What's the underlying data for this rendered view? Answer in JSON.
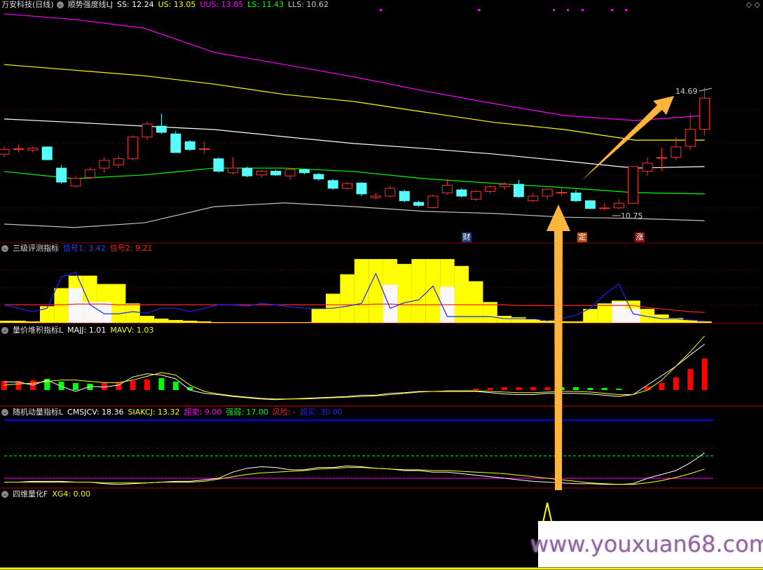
{
  "main_header": {
    "title": "万安科技(日线)",
    "indicator": "顺势强度线LJ",
    "ss": "SS: 12.24",
    "us": "US: 13.05",
    "uus": "UUS: 13.85",
    "ls": "LS: 11.43",
    "lls": "LLS: 10.62"
  },
  "panel2_header": {
    "title": "三级评测指标",
    "sig1": "信号1: 3.42",
    "sig2": "信号2: 9.21"
  },
  "panel3_header": {
    "title": "量价堆积指标L",
    "majj": "MAJJ: 1.01",
    "mavv": "MAVV: 1.03"
  },
  "panel4_header": {
    "title": "随机动量指标L",
    "cmsjcv": "CMSJCV: 18.36",
    "siakcj": "SIAKCJ: 13.32",
    "oversold": "超卖: 9.00",
    "strength": "强弱: 17.00",
    "risk": "风险: -",
    "overbought": "超买: 30.00"
  },
  "panel5_header": {
    "title": "四维量化F",
    "xg4": "XG4: 0.00"
  },
  "markers": {
    "cai": "财",
    "ding": "定",
    "zhang": "涨"
  },
  "watermark": "www.youxuan68.com",
  "colors": {
    "up": "#ff3030",
    "down": "#54fcfc",
    "uus": "#ff00ff",
    "us": "#ffff00",
    "ss": "#ffffff",
    "ls": "#00ff00",
    "lls": "#c0c0c0",
    "arrow": "#ffb43c"
  },
  "chart_data": {
    "type": "candlestick",
    "high_label": "14.69",
    "low_label": "10.75",
    "candles": [
      [
        12.55,
        12.8,
        12.45,
        12.7
      ],
      [
        12.72,
        12.85,
        12.6,
        12.72
      ],
      [
        12.68,
        12.8,
        12.6,
        12.74
      ],
      [
        12.78,
        12.8,
        12.35,
        12.37
      ],
      [
        12.1,
        12.2,
        11.6,
        11.65
      ],
      [
        11.52,
        11.85,
        11.48,
        11.77
      ],
      [
        11.8,
        12.12,
        11.75,
        12.05
      ],
      [
        12.1,
        12.45,
        11.95,
        12.35
      ],
      [
        12.2,
        12.5,
        12.1,
        12.4
      ],
      [
        12.4,
        13.15,
        12.35,
        13.1
      ],
      [
        13.1,
        13.6,
        13.0,
        13.52
      ],
      [
        13.45,
        13.85,
        13.2,
        13.25
      ],
      [
        13.2,
        13.3,
        12.6,
        12.6
      ],
      [
        12.95,
        13.0,
        12.65,
        12.7
      ],
      [
        12.72,
        12.95,
        12.55,
        12.72
      ],
      [
        12.4,
        12.45,
        11.95,
        12.0
      ],
      [
        11.95,
        12.45,
        11.9,
        12.1
      ],
      [
        12.1,
        12.15,
        11.8,
        11.85
      ],
      [
        11.88,
        12.05,
        11.8,
        12.0
      ],
      [
        12.0,
        12.05,
        11.85,
        11.88
      ],
      [
        11.85,
        12.1,
        11.72,
        12.05
      ],
      [
        12.05,
        12.08,
        11.9,
        11.95
      ],
      [
        11.9,
        11.95,
        11.7,
        11.75
      ],
      [
        11.7,
        11.75,
        11.4,
        11.45
      ],
      [
        11.45,
        11.65,
        11.4,
        11.6
      ],
      [
        11.62,
        11.65,
        11.2,
        11.27
      ],
      [
        11.15,
        11.3,
        11.1,
        11.2
      ],
      [
        11.2,
        11.52,
        11.15,
        11.45
      ],
      [
        11.35,
        11.4,
        11.0,
        11.05
      ],
      [
        11.0,
        11.05,
        10.85,
        10.9
      ],
      [
        10.83,
        11.25,
        10.8,
        11.2
      ],
      [
        11.3,
        11.75,
        11.25,
        11.55
      ],
      [
        11.4,
        11.45,
        11.15,
        11.2
      ],
      [
        11.1,
        11.4,
        11.05,
        11.35
      ],
      [
        11.35,
        11.55,
        11.28,
        11.5
      ],
      [
        11.5,
        11.65,
        11.4,
        11.58
      ],
      [
        11.58,
        11.72,
        11.15,
        11.18
      ],
      [
        11.05,
        11.3,
        11.0,
        11.2
      ],
      [
        11.2,
        11.45,
        11.1,
        11.42
      ],
      [
        11.32,
        11.45,
        11.2,
        11.32
      ],
      [
        11.3,
        11.4,
        11.0,
        11.05
      ],
      [
        11.05,
        11.08,
        10.78,
        10.8
      ],
      [
        10.82,
        10.98,
        10.75,
        10.82
      ],
      [
        10.82,
        11.1,
        10.77,
        10.97
      ],
      [
        10.97,
        12.15,
        10.95,
        12.15
      ],
      [
        12.0,
        12.45,
        11.85,
        12.26
      ],
      [
        12.44,
        12.75,
        12.0,
        12.44
      ],
      [
        12.45,
        13.1,
        12.35,
        12.78
      ],
      [
        12.8,
        13.85,
        12.7,
        13.35
      ],
      [
        13.35,
        14.69,
        13.15,
        14.35
      ]
    ],
    "bands": {
      "UUS": [
        17.06,
        16.88,
        16.6,
        15.82,
        15.43,
        15.03,
        14.58,
        14.17,
        13.79,
        13.63,
        13.79
      ],
      "US": [
        15.43,
        15.25,
        15.07,
        14.8,
        14.47,
        14.24,
        13.9,
        13.57,
        13.34,
        13.0,
        13.0
      ],
      "SS": [
        13.68,
        13.57,
        13.45,
        13.34,
        13.11,
        12.89,
        12.73,
        12.55,
        12.33,
        12.1,
        12.15
      ],
      "LS": [
        11.99,
        11.76,
        11.88,
        12.1,
        12.1,
        11.99,
        11.76,
        11.61,
        11.47,
        11.31,
        11.27
      ],
      "LLS": [
        10.3,
        10.19,
        10.34,
        10.86,
        10.98,
        10.86,
        10.71,
        10.64,
        10.52,
        10.48,
        10.41
      ]
    },
    "panel2": {
      "yellow": [
        3,
        3,
        2,
        24,
        50,
        68,
        68,
        56,
        56,
        28,
        10,
        6,
        4,
        3,
        2,
        1,
        1,
        1,
        1,
        1,
        1,
        1,
        20,
        42,
        70,
        92,
        92,
        92,
        85,
        92,
        92,
        92,
        82,
        60,
        30,
        10,
        8,
        5,
        3,
        2,
        2,
        20,
        28,
        32,
        32,
        20,
        12,
        7,
        4,
        2
      ],
      "white": [
        0,
        0,
        0,
        0,
        0,
        50,
        30,
        30,
        0,
        0,
        0,
        0,
        0,
        0,
        0,
        0,
        0,
        0,
        0,
        0,
        0,
        0,
        0,
        0,
        0,
        0,
        0,
        55,
        0,
        0,
        0,
        52,
        0,
        0,
        0,
        0,
        0,
        0,
        0,
        0,
        0,
        0,
        0,
        30,
        20,
        0,
        0,
        0,
        0,
        0
      ],
      "sig1": [
        26,
        21,
        16,
        21,
        66,
        73,
        26,
        13,
        13,
        16,
        14,
        21,
        21,
        16,
        21,
        26,
        26,
        24,
        28,
        26,
        23,
        21,
        21,
        21,
        24,
        28,
        71,
        21,
        29,
        33,
        53,
        9,
        9,
        9,
        9,
        6,
        6,
        6,
        3,
        6,
        11,
        21,
        41,
        56,
        13,
        9,
        6,
        6,
        4,
        3
      ],
      "sig2": [
        26,
        26,
        26,
        26,
        26,
        27,
        27,
        27,
        26,
        26,
        26,
        26,
        26,
        26,
        26,
        26,
        26,
        26,
        26,
        26,
        26,
        26,
        26,
        26,
        26,
        26,
        27,
        27,
        26,
        26,
        26,
        26,
        26,
        26,
        26,
        26,
        25,
        25,
        25,
        25,
        25,
        25,
        25,
        25,
        25,
        22,
        20,
        18,
        16,
        15
      ]
    },
    "panel3": {
      "bars": [
        13,
        13,
        14,
        -16,
        -12,
        -10,
        -9,
        10,
        11,
        13,
        15,
        -17,
        -12,
        -4,
        0,
        0,
        0,
        0,
        0,
        0,
        0,
        0,
        0,
        0,
        0,
        0,
        0,
        0,
        0,
        0,
        0,
        0,
        0,
        2,
        3,
        4,
        4,
        4,
        4,
        -4,
        -4,
        -3,
        -3,
        -2,
        0,
        5,
        10,
        18,
        30,
        45
      ],
      "majj": [
        35,
        35,
        30,
        38,
        28,
        20,
        28,
        27,
        30,
        43,
        48,
        46,
        40,
        22,
        17,
        15,
        12,
        10,
        8,
        7,
        8,
        9,
        10,
        11,
        12,
        14,
        14,
        17,
        18,
        20,
        20,
        20,
        20,
        20,
        18,
        16,
        15,
        15,
        17,
        17,
        17,
        16,
        14,
        12,
        15,
        30,
        45,
        60,
        78,
        95
      ],
      "mavv": [
        30,
        32,
        33,
        36,
        38,
        38,
        36,
        34,
        34,
        38,
        44,
        50,
        46,
        30,
        20,
        16,
        13,
        11,
        9,
        8,
        8,
        8,
        9,
        10,
        11,
        12,
        13,
        15,
        17,
        19,
        20,
        21,
        21,
        21,
        20,
        19,
        18,
        18,
        19,
        20,
        20,
        19,
        17,
        15,
        15,
        22,
        38,
        60,
        83,
        108
      ]
    },
    "panel4": {
      "cmsjcv": [
        5,
        5,
        6,
        6,
        6,
        5,
        5,
        3,
        2,
        3,
        4,
        5,
        6,
        6,
        8,
        10,
        18,
        23,
        25,
        24,
        21,
        21,
        24,
        24,
        26,
        25,
        23,
        22,
        20,
        20,
        18,
        18,
        16,
        14,
        12,
        10,
        8,
        6,
        5,
        4,
        3,
        3,
        2,
        2,
        3,
        10,
        15,
        20,
        30,
        43
      ],
      "siakcj": [
        5,
        5,
        5,
        5,
        5,
        5,
        5,
        4,
        4,
        4,
        4,
        5,
        5,
        5,
        6,
        9,
        12,
        15,
        17,
        18,
        19,
        20,
        22,
        23,
        24,
        24,
        23,
        22,
        21,
        21,
        20,
        20,
        19,
        18,
        17,
        16,
        14,
        12,
        10,
        8,
        6,
        4,
        3,
        2,
        2,
        4,
        7,
        11,
        16,
        22
      ]
    },
    "panel5": {
      "xg4_signal_index": 38
    }
  }
}
